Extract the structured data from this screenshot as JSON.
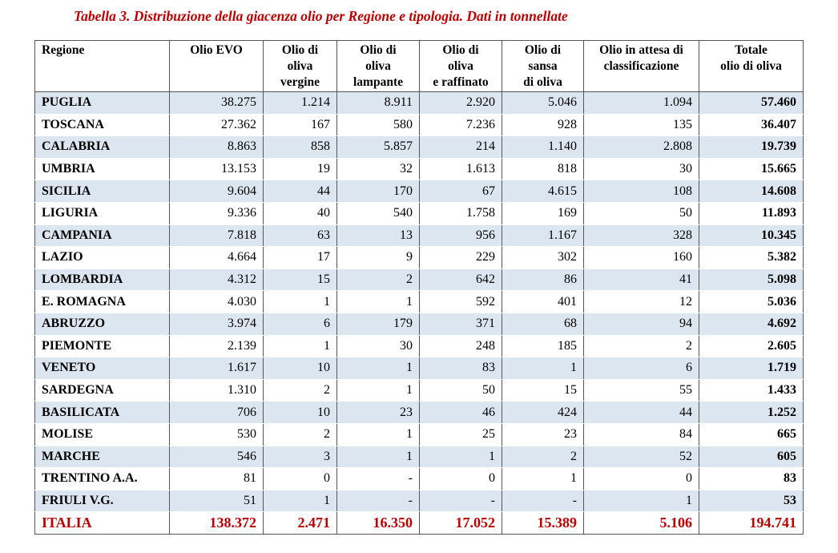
{
  "title": "Tabella 3. Distribuzione della giacenza olio per Regione e tipologia. Dati in tonnellate",
  "table": {
    "header": [
      "Regione",
      "Olio EVO",
      "Olio di\noliva\nvergine",
      "Olio di\noliva\nlampante",
      "Olio di\noliva\ne raffinato",
      "Olio di\nsansa\ndi oliva",
      "Olio in attesa di\nclassificazione",
      "Totale\nolio di oliva"
    ],
    "rows": [
      [
        "PUGLIA",
        "38.275",
        "1.214",
        "8.911",
        "2.920",
        "5.046",
        "1.094",
        "57.460"
      ],
      [
        "TOSCANA",
        "27.362",
        "167",
        "580",
        "7.236",
        "928",
        "135",
        "36.407"
      ],
      [
        "CALABRIA",
        "8.863",
        "858",
        "5.857",
        "214",
        "1.140",
        "2.808",
        "19.739"
      ],
      [
        "UMBRIA",
        "13.153",
        "19",
        "32",
        "1.613",
        "818",
        "30",
        "15.665"
      ],
      [
        "SICILIA",
        "9.604",
        "44",
        "170",
        "67",
        "4.615",
        "108",
        "14.608"
      ],
      [
        "LIGURIA",
        "9.336",
        "40",
        "540",
        "1.758",
        "169",
        "50",
        "11.893"
      ],
      [
        "CAMPANIA",
        "7.818",
        "63",
        "13",
        "956",
        "1.167",
        "328",
        "10.345"
      ],
      [
        "LAZIO",
        "4.664",
        "17",
        "9",
        "229",
        "302",
        "160",
        "5.382"
      ],
      [
        "LOMBARDIA",
        "4.312",
        "15",
        "2",
        "642",
        "86",
        "41",
        "5.098"
      ],
      [
        "E. ROMAGNA",
        "4.030",
        "1",
        "1",
        "592",
        "401",
        "12",
        "5.036"
      ],
      [
        "ABRUZZO",
        "3.974",
        "6",
        "179",
        "371",
        "68",
        "94",
        "4.692"
      ],
      [
        "PIEMONTE",
        "2.139",
        "1",
        "30",
        "248",
        "185",
        "2",
        "2.605"
      ],
      [
        "VENETO",
        "1.617",
        "10",
        "1",
        "83",
        "1",
        "6",
        "1.719"
      ],
      [
        "SARDEGNA",
        "1.310",
        "2",
        "1",
        "50",
        "15",
        "55",
        "1.433"
      ],
      [
        "BASILICATA",
        "706",
        "10",
        "23",
        "46",
        "424",
        "44",
        "1.252"
      ],
      [
        "MOLISE",
        "530",
        "2",
        "1",
        "25",
        "23",
        "84",
        "665"
      ],
      [
        "MARCHE",
        "546",
        "3",
        "1",
        "1",
        "2",
        "52",
        "605"
      ],
      [
        "TRENTINO A.A.",
        "81",
        "0",
        "-",
        "0",
        "1",
        "0",
        "83"
      ],
      [
        "FRIULI V.G.",
        "51",
        "1",
        "-",
        "-",
        "-",
        "1",
        "53"
      ]
    ],
    "total": [
      "ITALIA",
      "138.372",
      "2.471",
      "16.350",
      "17.052",
      "15.389",
      "5.106",
      "194.741"
    ]
  }
}
